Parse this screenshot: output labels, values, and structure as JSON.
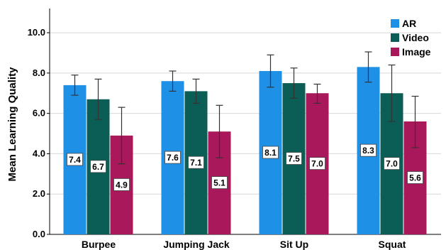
{
  "chart_data": {
    "type": "bar",
    "title": "",
    "xlabel": "",
    "ylabel": "Mean Learning Quality",
    "ylim": [
      0,
      11.2
    ],
    "yticks": [
      "0.0",
      "2.0",
      "4.0",
      "6.0",
      "8.0",
      "10.0"
    ],
    "grid": "horizontal",
    "legend_position": "top-right",
    "categories": [
      "Burpee",
      "Jumping Jack",
      "Sit Up",
      "Squat"
    ],
    "series": [
      {
        "name": "AR",
        "color": "#1e90e6",
        "values": [
          7.4,
          7.6,
          8.1,
          8.3
        ],
        "labels": [
          "7.4",
          "7.6",
          "8.1",
          "8.3"
        ],
        "err_low": [
          6.9,
          7.1,
          7.3,
          7.55
        ],
        "err_high": [
          7.9,
          8.1,
          8.9,
          9.05
        ]
      },
      {
        "name": "Video",
        "color": "#0b5e56",
        "values": [
          6.7,
          7.1,
          7.5,
          7.0
        ],
        "labels": [
          "6.7",
          "7.1",
          "7.5",
          "7.0"
        ],
        "err_low": [
          5.7,
          6.5,
          6.75,
          5.6
        ],
        "err_high": [
          7.7,
          7.7,
          8.25,
          8.4
        ]
      },
      {
        "name": "Image",
        "color": "#a8185a",
        "values": [
          4.9,
          5.1,
          7.0,
          5.6
        ],
        "labels": [
          "4.9",
          "5.1",
          "7.0",
          "5.6"
        ],
        "err_low": [
          3.5,
          3.8,
          6.5,
          4.3
        ],
        "err_high": [
          6.3,
          6.4,
          7.45,
          6.85
        ]
      }
    ]
  }
}
